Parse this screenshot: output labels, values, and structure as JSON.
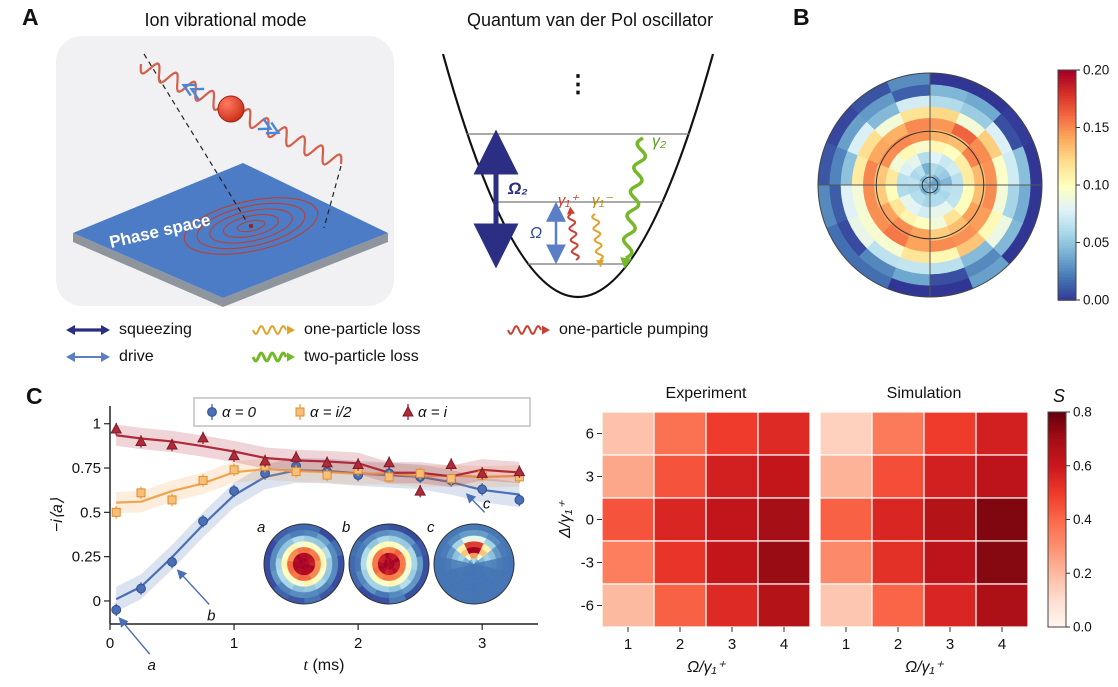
{
  "figure": {
    "panel_a": {
      "label": "A",
      "title_ion": "Ion vibrational mode",
      "title_qvdp": "Quantum van der Pol oscillator",
      "phase_space": "Phase space",
      "well_labels": {
        "dots": "⋮",
        "omega2": "Ω₂",
        "omega": "Ω",
        "gamma1_plus": "γ₁⁺",
        "gamma1_minus": "γ₁⁻",
        "gamma2": "γ₂"
      }
    },
    "panel_b": {
      "label": "B"
    },
    "panel_c": {
      "label": "C"
    }
  },
  "legend": {
    "row1": [
      {
        "label": "squeezing",
        "icon": "double-arrow",
        "color": "#2b2e83"
      },
      {
        "label": "one-particle loss",
        "icon": "wavy-arrow",
        "color": "#e0a42b"
      },
      {
        "label": "one-particle pumping",
        "icon": "wavy-arrow",
        "color": "#c94034"
      }
    ],
    "row2": [
      {
        "label": "drive",
        "icon": "double-arrow-thin",
        "color": "#5b7fc7"
      },
      {
        "label": "two-particle loss",
        "icon": "wavy-arrow-thick",
        "color": "#76b82a"
      }
    ]
  },
  "chart_data": [
    {
      "id": "wigner_polar",
      "type": "heatmap",
      "subtype": "polar",
      "panel": "B",
      "n_angular_sectors": 16,
      "radial_profile": [
        0.045,
        0.055,
        0.075,
        0.105,
        0.14,
        0.15,
        0.115,
        0.065,
        0.03,
        0.012
      ],
      "colormap": "RdYlBu_r",
      "colorbar": {
        "min": 0.0,
        "max": 0.2,
        "ticks": [
          "0.20",
          "0.15",
          "0.10",
          "0.05",
          "0.00"
        ]
      }
    },
    {
      "id": "dynamics",
      "type": "line",
      "panel": "C",
      "xlabel": "t (ms)",
      "ylabel": "−i⟨a⟩",
      "xlim": [
        0,
        3.45
      ],
      "ylim": [
        -0.13,
        1.1
      ],
      "xticks": [
        "0",
        "1",
        "2",
        "3"
      ],
      "xtick_vals": [
        0,
        1,
        2,
        3
      ],
      "yticks": [
        "0",
        "0.25",
        "0.5",
        "0.75",
        "1"
      ],
      "ytick_vals": [
        0,
        0.25,
        0.5,
        0.75,
        1
      ],
      "x": [
        0.05,
        0.25,
        0.5,
        0.75,
        1.0,
        1.25,
        1.5,
        1.75,
        2.0,
        2.25,
        2.5,
        2.75,
        3.0,
        3.3
      ],
      "series": [
        {
          "name": "α = 0",
          "marker": "circle",
          "color": "#4a6fb5",
          "band": 0.07,
          "y": [
            -0.05,
            0.07,
            0.22,
            0.45,
            0.62,
            0.72,
            0.76,
            0.73,
            0.71,
            0.72,
            0.7,
            0.68,
            0.63,
            0.57
          ]
        },
        {
          "name": "α = i/2",
          "marker": "square",
          "color": "#f0a44e",
          "band": 0.06,
          "y": [
            0.5,
            0.61,
            0.57,
            0.68,
            0.74,
            0.76,
            0.73,
            0.71,
            0.74,
            0.7,
            0.72,
            0.69,
            0.71,
            0.7
          ]
        },
        {
          "name": "α = i",
          "marker": "triangle",
          "color": "#b02a3a",
          "band": 0.06,
          "y": [
            0.97,
            0.9,
            0.88,
            0.92,
            0.82,
            0.79,
            0.81,
            0.78,
            0.77,
            0.78,
            0.62,
            0.77,
            0.72,
            0.73
          ]
        }
      ],
      "error_bar": 0.035,
      "annotations": [
        {
          "label": "a",
          "lx": 0.32,
          "ly": -0.3,
          "px": 0.08,
          "py": -0.1,
          "tdy": 16
        },
        {
          "label": "b",
          "lx": 0.8,
          "ly": -0.02,
          "px": 0.55,
          "py": 0.17,
          "tdy": 16
        },
        {
          "label": "c",
          "lx": 3.02,
          "ly": 0.5,
          "px": 2.88,
          "py": 0.6,
          "tdy": -4
        }
      ],
      "insets": [
        {
          "label": "a",
          "pattern": "center-peak"
        },
        {
          "label": "b",
          "pattern": "center-peak"
        },
        {
          "label": "c",
          "pattern": "top-lobe"
        }
      ]
    },
    {
      "id": "experiment",
      "type": "heatmap",
      "title": "Experiment",
      "xlabel": "Ω/γ₁⁺",
      "ylabel": "Δ/γ₁⁺",
      "xticks": [
        "1",
        "2",
        "3",
        "4"
      ],
      "yticks": [
        "6",
        "3",
        "0",
        "-3",
        "-6"
      ],
      "vmin": 0,
      "vmax": 0.8,
      "colormap": "Reds",
      "values": [
        [
          0.18,
          0.38,
          0.5,
          0.55
        ],
        [
          0.25,
          0.45,
          0.58,
          0.62
        ],
        [
          0.45,
          0.56,
          0.63,
          0.7
        ],
        [
          0.35,
          0.52,
          0.62,
          0.72
        ],
        [
          0.2,
          0.42,
          0.55,
          0.66
        ]
      ]
    },
    {
      "id": "simulation",
      "type": "heatmap",
      "title": "Simulation",
      "xlabel": "Ω/γ₁⁺",
      "ylabel": "",
      "xticks": [
        "1",
        "2",
        "3",
        "4"
      ],
      "yticks": [],
      "vmin": 0,
      "vmax": 0.8,
      "colormap": "Reds",
      "values": [
        [
          0.14,
          0.36,
          0.5,
          0.58
        ],
        [
          0.22,
          0.46,
          0.58,
          0.64
        ],
        [
          0.42,
          0.56,
          0.66,
          0.76
        ],
        [
          0.32,
          0.53,
          0.64,
          0.75
        ],
        [
          0.17,
          0.41,
          0.56,
          0.68
        ]
      ]
    },
    {
      "id": "s_colorbar",
      "type": "colorbar",
      "label": "S",
      "min": 0.0,
      "max": 0.8,
      "ticks": [
        "0.8",
        "0.6",
        "0.4",
        "0.2",
        "0.0"
      ],
      "colormap": "Reds"
    }
  ]
}
